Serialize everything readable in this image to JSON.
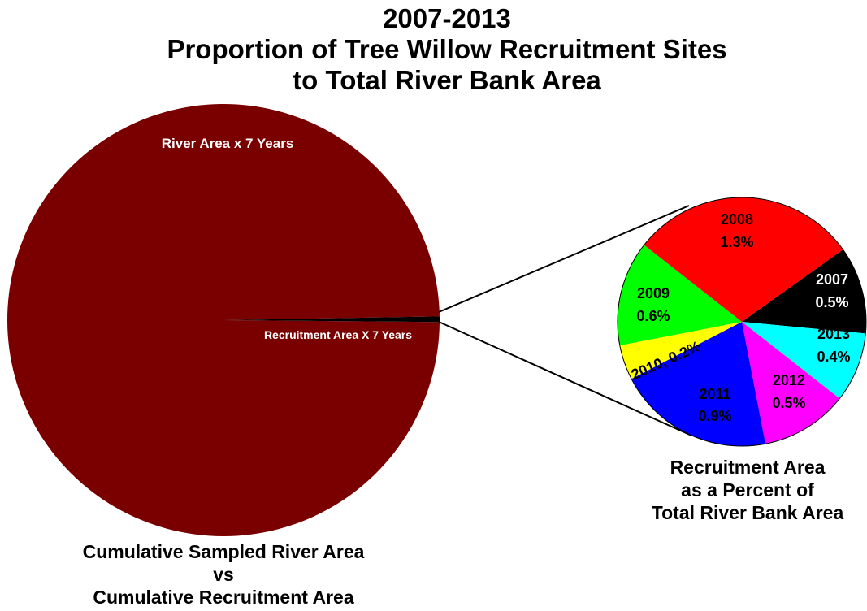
{
  "title_lines": [
    "2007-2013",
    "Proportion of Tree Willow Recruitment Sites",
    "to Total River Bank Area"
  ],
  "chart_data": [
    {
      "type": "pie",
      "slices": [
        {
          "label": "River Area x 7 Years",
          "color": "#7a0000"
        },
        {
          "label": "Recruitment Area X 7 Years",
          "color": "#000000"
        }
      ],
      "caption_lines": [
        "Cumulative Sampled River Area",
        "vs",
        "Cumulative Recruitment Area"
      ]
    },
    {
      "type": "pie",
      "slices": [
        {
          "year": "2007",
          "value_label": "0.5%",
          "value": 0.5,
          "color": "#000000",
          "text_color": "#ffffff"
        },
        {
          "year": "2013",
          "value_label": "0.4%",
          "value": 0.4,
          "color": "#00ffff",
          "text_color": "#000000"
        },
        {
          "year": "2012",
          "value_label": "0.5%",
          "value": 0.5,
          "color": "#ff00ff",
          "text_color": "#000000"
        },
        {
          "year": "2011",
          "value_label": "0.9%",
          "value": 0.9,
          "color": "#0000ff",
          "text_color": "#000000"
        },
        {
          "year": "2010",
          "label": "2010, 0.2%",
          "value": 0.2,
          "color": "#ffff00",
          "text_color": "#000000"
        },
        {
          "year": "2009",
          "value_label": "0.6%",
          "value": 0.6,
          "color": "#00ff00",
          "text_color": "#000000"
        },
        {
          "year": "2008",
          "value_label": "1.3%",
          "value": 1.3,
          "color": "#ff0000",
          "text_color": "#000000"
        }
      ],
      "caption_lines": [
        "Recruitment Area",
        "as a Percent of",
        "Total River Bank Area"
      ]
    }
  ]
}
